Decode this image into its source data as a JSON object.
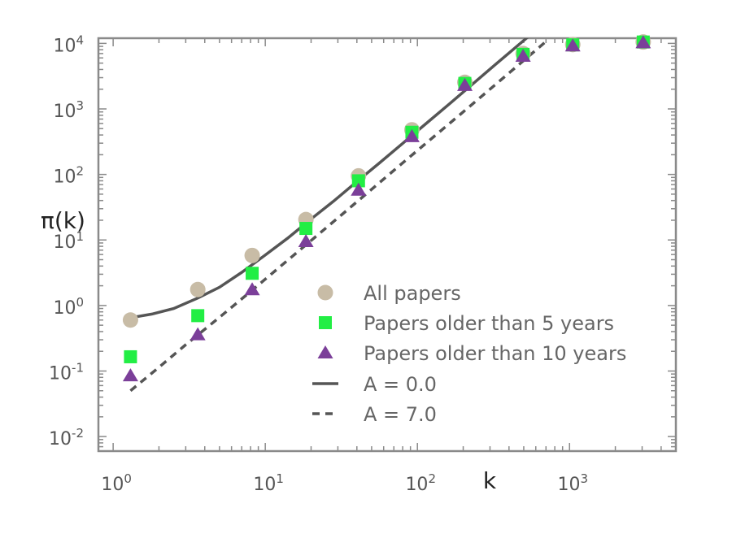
{
  "chart_data": {
    "type": "scatter",
    "title": "",
    "xlabel": "k",
    "ylabel": "π(k)",
    "x_scale": "log",
    "y_scale": "log",
    "xlim": [
      0.8,
      5000
    ],
    "ylim": [
      0.006,
      12000
    ],
    "x_ticks": [
      {
        "value": 1,
        "base": "10",
        "exp": "0"
      },
      {
        "value": 10,
        "base": "10",
        "exp": "1"
      },
      {
        "value": 100,
        "base": "10",
        "exp": "2"
      },
      {
        "value": 1000,
        "base": "10",
        "exp": "3"
      }
    ],
    "y_ticks": [
      {
        "value": 0.01,
        "base": "10",
        "exp": "-2"
      },
      {
        "value": 0.1,
        "base": "10",
        "exp": "-1"
      },
      {
        "value": 1,
        "base": "10",
        "exp": "0"
      },
      {
        "value": 10,
        "base": "10",
        "exp": "1"
      },
      {
        "value": 100,
        "base": "10",
        "exp": "2"
      },
      {
        "value": 1000,
        "base": "10",
        "exp": "3"
      },
      {
        "value": 10000,
        "base": "10",
        "exp": "4"
      }
    ],
    "grid": false,
    "legend_position": "bottom-right",
    "series": [
      {
        "name": "All papers",
        "marker": "circle",
        "color": "#c8bca6",
        "x": [
          1.3,
          3.6,
          8.2,
          18.5,
          41,
          92,
          205,
          495,
          1050,
          3050
        ],
        "y": [
          0.6,
          1.75,
          5.8,
          20.5,
          95,
          480,
          2550,
          7000,
          9600,
          10500
        ]
      },
      {
        "name": "Papers older than 5 years",
        "marker": "square",
        "color": "#22ee44",
        "x": [
          1.3,
          3.6,
          8.2,
          18.5,
          41,
          92,
          205,
          495,
          1050,
          3050
        ],
        "y": [
          0.165,
          0.7,
          3.1,
          15,
          80,
          440,
          2450,
          6800,
          9500,
          10500
        ]
      },
      {
        "name": "Papers older than 10 years",
        "marker": "triangle",
        "color": "#7b3f99",
        "x": [
          1.3,
          3.6,
          8.2,
          18.5,
          41,
          92,
          205,
          495,
          1050,
          3050
        ],
        "y": [
          0.085,
          0.36,
          1.75,
          9.5,
          58,
          380,
          2300,
          6400,
          9200,
          10300
        ]
      },
      {
        "name": "A = 0.0",
        "marker": "line",
        "dash": "solid",
        "color": "#555555",
        "x": [
          1.3,
          1.8,
          2.5,
          3.6,
          5,
          7,
          10,
          14,
          20,
          28,
          40,
          56,
          80,
          112,
          160,
          224,
          320,
          450,
          640
        ],
        "y": [
          0.65,
          0.74,
          0.9,
          1.3,
          1.9,
          3.2,
          5.9,
          10.6,
          20.9,
          38.8,
          77.8,
          148,
          298,
          577,
          1160,
          2260,
          4600,
          9000,
          18000
        ]
      },
      {
        "name": "A = 7.0",
        "marker": "line",
        "dash": "dashed",
        "color": "#555555",
        "x": [
          1.3,
          2,
          3,
          5,
          8,
          13,
          20,
          32,
          50,
          80,
          128,
          200,
          320,
          512,
          720
        ],
        "y": [
          0.05,
          0.114,
          0.252,
          0.66,
          1.63,
          4.22,
          9.8,
          24.6,
          59.3,
          150,
          376,
          900,
          2270,
          5750,
          11300
        ]
      }
    ]
  }
}
